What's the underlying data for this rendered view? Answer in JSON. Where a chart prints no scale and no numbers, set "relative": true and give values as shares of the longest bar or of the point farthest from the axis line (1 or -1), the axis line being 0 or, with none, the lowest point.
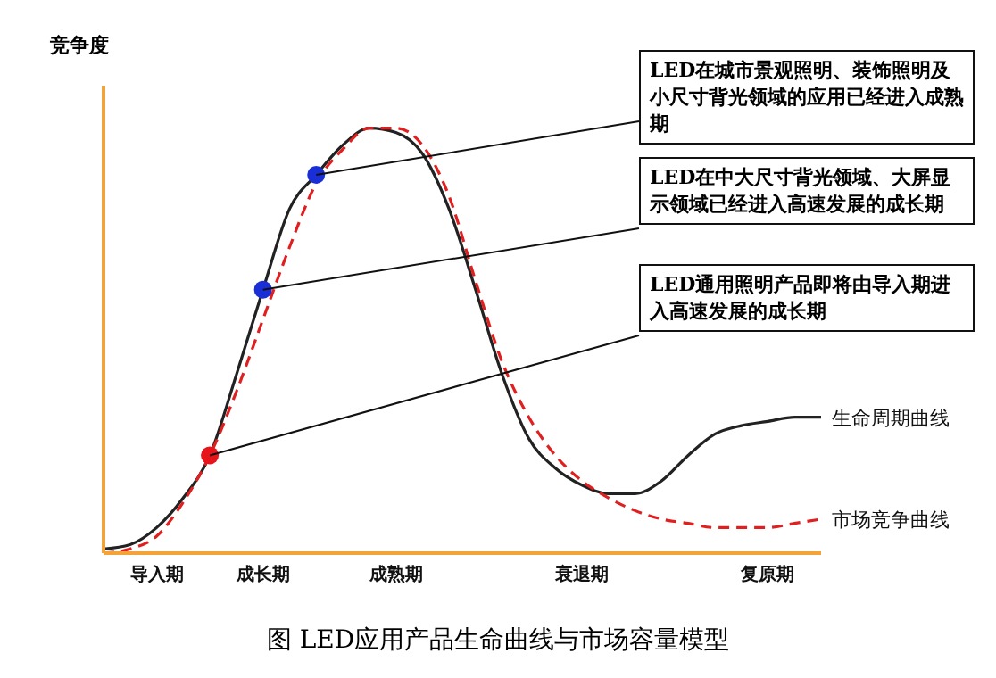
{
  "chart_data": {
    "type": "line",
    "relative": true,
    "title": "图 LED应用产品生命曲线与市场容量模型",
    "ylabel": "竞争度",
    "categories": [
      null,
      null,
      "导入期",
      null,
      null,
      null,
      "成长期",
      null,
      null,
      null,
      null,
      "成熟期",
      null,
      null,
      null,
      null,
      null,
      null,
      "衰退期",
      null,
      null,
      null,
      null,
      null,
      null,
      "复原期",
      null,
      null
    ],
    "series": [
      {
        "name": "生命周期曲线",
        "color": "#222222",
        "line_style": "solid",
        "values": [
          0.01,
          0.02,
          0.06,
          0.13,
          0.23,
          0.42,
          0.62,
          0.81,
          0.89,
          0.96,
          1,
          0.99,
          0.94,
          0.81,
          0.62,
          0.42,
          0.27,
          0.2,
          0.16,
          0.14,
          0.14,
          0.17,
          0.23,
          0.28,
          0.3,
          0.31,
          0.32,
          0.32
        ]
      },
      {
        "name": "市场竞争曲线",
        "color": "#e02020",
        "line_style": "dashed",
        "values": [
          0,
          0.01,
          0.04,
          0.12,
          0.23,
          0.38,
          0.55,
          0.72,
          0.87,
          0.95,
          1,
          1,
          0.96,
          0.84,
          0.64,
          0.45,
          0.32,
          0.23,
          0.17,
          0.13,
          0.1,
          0.08,
          0.07,
          0.06,
          0.06,
          0.06,
          0.07,
          0.08
        ]
      },
      {
        "type": "scatter",
        "marker": "circle",
        "values": [
          null,
          null,
          null,
          null,
          0.23,
          null,
          0.62,
          null,
          0.89,
          null,
          null,
          null,
          null,
          null,
          null,
          null,
          null,
          null,
          null,
          null,
          null,
          null,
          null,
          null,
          null,
          null,
          null,
          null
        ],
        "colors": [
          null,
          null,
          null,
          null,
          "#e8141c",
          null,
          "#1a2ed8",
          null,
          "#1a2ed8",
          null,
          null,
          null,
          null,
          null,
          null,
          null,
          null,
          null,
          null,
          null,
          null,
          null,
          null,
          null,
          null,
          null,
          null,
          null
        ]
      }
    ],
    "annotations": [
      "LED在城市景观照明、装饰照明及小尺寸背光领域的应用已经进入成熟期",
      "LED在中大尺寸背光领域、大屏显示领域已经进入高速发展的成长期",
      "LED通用照明产品即将由导入期进入高速发展的成长期"
    ]
  }
}
